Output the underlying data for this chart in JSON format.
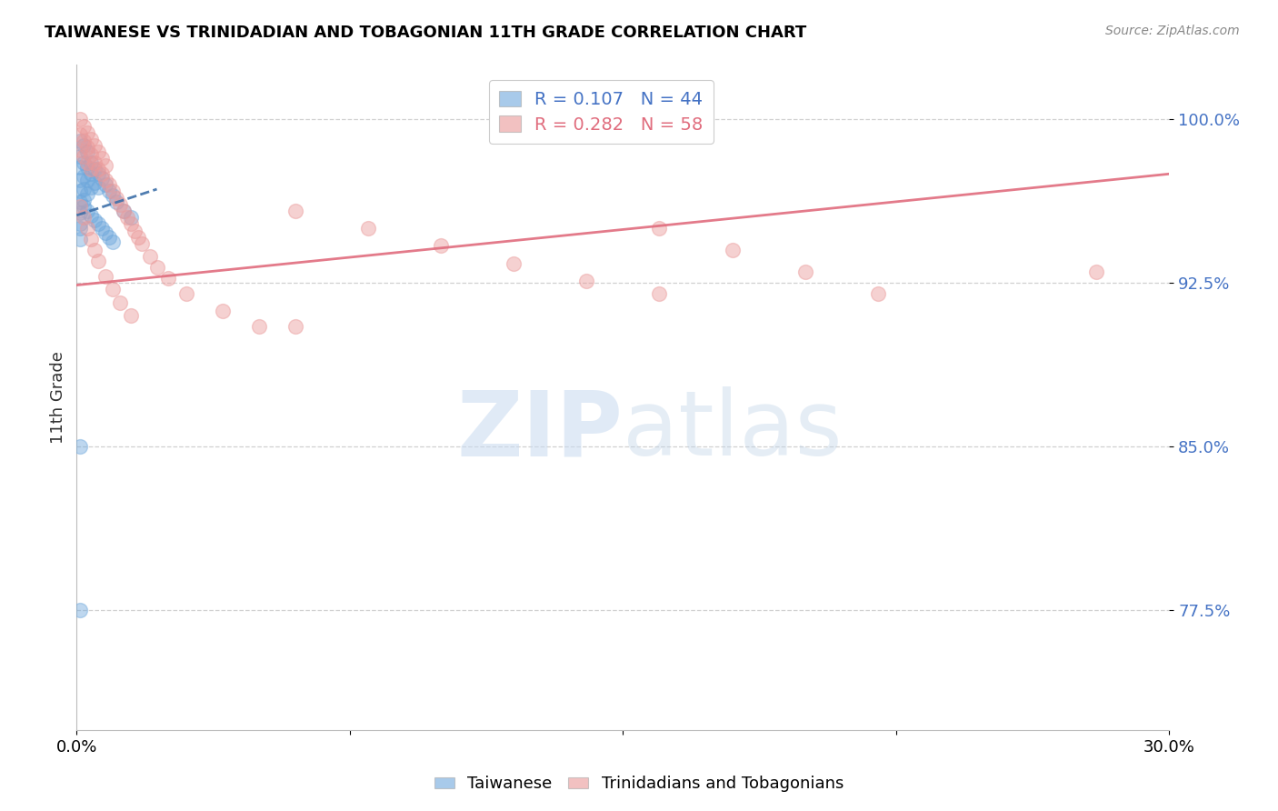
{
  "title": "TAIWANESE VS TRINIDADIAN AND TOBAGONIAN 11TH GRADE CORRELATION CHART",
  "source": "Source: ZipAtlas.com",
  "ylabel": "11th Grade",
  "ylabel_ticks": [
    "100.0%",
    "92.5%",
    "85.0%",
    "77.5%"
  ],
  "ylabel_tick_vals": [
    1.0,
    0.925,
    0.85,
    0.775
  ],
  "xmin": 0.0,
  "xmax": 0.3,
  "ymin": 0.72,
  "ymax": 1.025,
  "legend_blue_r": "0.107",
  "legend_blue_n": "44",
  "legend_pink_r": "0.282",
  "legend_pink_n": "58",
  "blue_color": "#6fa8dc",
  "pink_color": "#ea9999",
  "blue_line_color": "#3d6fa8",
  "pink_line_color": "#e06c7d",
  "blue_scatter_x": [
    0.001,
    0.001,
    0.001,
    0.001,
    0.001,
    0.001,
    0.001,
    0.001,
    0.002,
    0.002,
    0.002,
    0.002,
    0.002,
    0.003,
    0.003,
    0.003,
    0.003,
    0.004,
    0.004,
    0.004,
    0.005,
    0.005,
    0.006,
    0.006,
    0.007,
    0.008,
    0.009,
    0.01,
    0.011,
    0.013,
    0.015,
    0.001,
    0.001,
    0.002,
    0.003,
    0.004,
    0.005,
    0.006,
    0.007,
    0.008,
    0.009,
    0.01,
    0.001,
    0.001
  ],
  "blue_scatter_y": [
    0.99,
    0.983,
    0.978,
    0.972,
    0.967,
    0.962,
    0.957,
    0.952,
    0.988,
    0.98,
    0.974,
    0.968,
    0.963,
    0.985,
    0.978,
    0.972,
    0.966,
    0.98,
    0.975,
    0.969,
    0.977,
    0.971,
    0.975,
    0.969,
    0.973,
    0.97,
    0.967,
    0.965,
    0.962,
    0.958,
    0.955,
    0.95,
    0.945,
    0.96,
    0.958,
    0.956,
    0.954,
    0.952,
    0.95,
    0.948,
    0.946,
    0.944,
    0.85,
    0.775
  ],
  "pink_scatter_x": [
    0.001,
    0.001,
    0.001,
    0.002,
    0.002,
    0.002,
    0.003,
    0.003,
    0.003,
    0.004,
    0.004,
    0.004,
    0.005,
    0.005,
    0.006,
    0.006,
    0.007,
    0.007,
    0.008,
    0.008,
    0.009,
    0.01,
    0.011,
    0.012,
    0.013,
    0.014,
    0.015,
    0.016,
    0.017,
    0.018,
    0.02,
    0.022,
    0.025,
    0.03,
    0.04,
    0.05,
    0.06,
    0.08,
    0.1,
    0.12,
    0.14,
    0.16,
    0.18,
    0.2,
    0.22,
    0.001,
    0.002,
    0.003,
    0.004,
    0.005,
    0.006,
    0.008,
    0.01,
    0.012,
    0.015,
    0.28,
    0.16,
    0.06
  ],
  "pink_scatter_y": [
    1.0,
    0.993,
    0.986,
    0.997,
    0.99,
    0.983,
    0.994,
    0.987,
    0.98,
    0.991,
    0.984,
    0.977,
    0.988,
    0.98,
    0.985,
    0.977,
    0.982,
    0.975,
    0.979,
    0.972,
    0.97,
    0.967,
    0.964,
    0.961,
    0.958,
    0.955,
    0.952,
    0.949,
    0.946,
    0.943,
    0.937,
    0.932,
    0.927,
    0.92,
    0.912,
    0.905,
    0.958,
    0.95,
    0.942,
    0.934,
    0.926,
    0.95,
    0.94,
    0.93,
    0.92,
    0.96,
    0.955,
    0.95,
    0.945,
    0.94,
    0.935,
    0.928,
    0.922,
    0.916,
    0.91,
    0.93,
    0.92,
    0.905
  ],
  "blue_trendline_x": [
    0.0,
    0.022
  ],
  "blue_trendline_y": [
    0.956,
    0.968
  ],
  "pink_trendline_x": [
    0.0,
    0.3
  ],
  "pink_trendline_y": [
    0.924,
    0.975
  ],
  "watermark_zip": "ZIP",
  "watermark_atlas": "atlas",
  "background_color": "#ffffff",
  "grid_color": "#d0d0d0"
}
